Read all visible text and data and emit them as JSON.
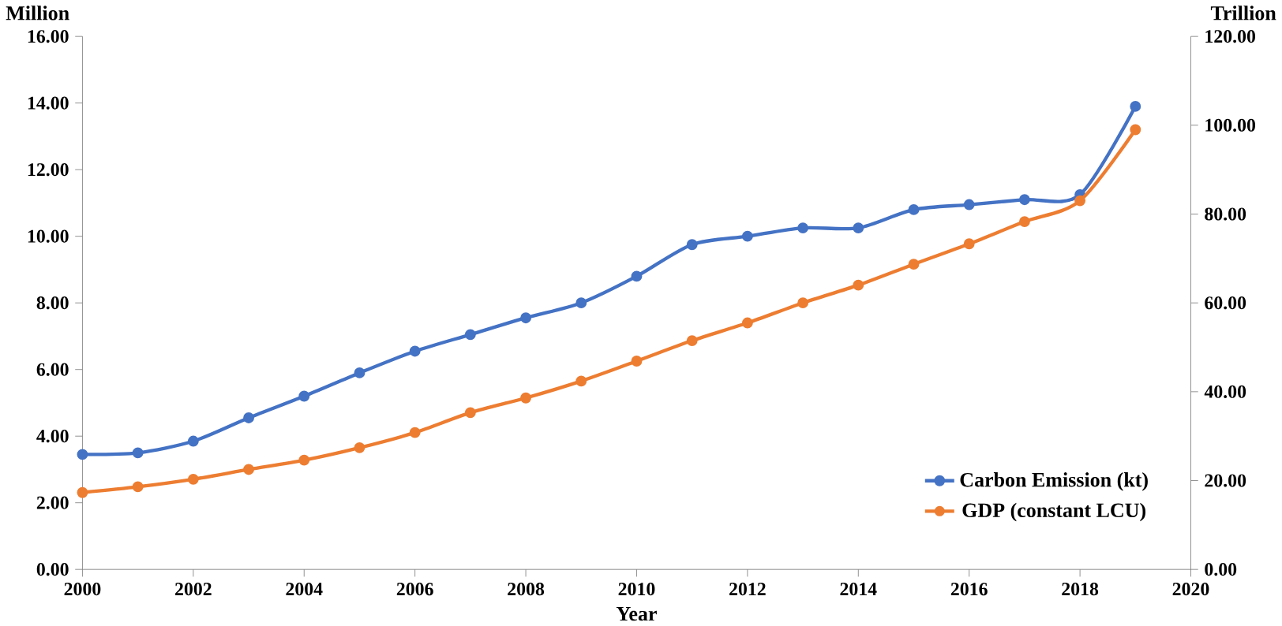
{
  "chart_data": {
    "type": "line",
    "xlabel": "Year",
    "ylabel": "Million",
    "y2label": "Trillion",
    "x": [
      2000,
      2001,
      2002,
      2003,
      2004,
      2005,
      2006,
      2007,
      2008,
      2009,
      2010,
      2011,
      2012,
      2013,
      2014,
      2015,
      2016,
      2017,
      2018,
      2019
    ],
    "series": [
      {
        "name": "Carbon Emission (kt)",
        "color": "#4472c4",
        "values": [
          3.45,
          3.5,
          3.85,
          4.55,
          5.2,
          5.9,
          6.55,
          7.05,
          7.55,
          8.0,
          8.8,
          9.75,
          10.0,
          10.25,
          10.25,
          10.8,
          10.95,
          11.1,
          11.25,
          13.9
        ]
      },
      {
        "name": "GDP (constant LCU)",
        "color": "#ed7d31",
        "axis": "y2",
        "values": [
          17.3,
          18.6,
          20.3,
          22.5,
          24.6,
          27.4,
          30.8,
          35.3,
          38.6,
          42.4,
          46.9,
          51.5,
          55.5,
          60,
          64,
          68.7,
          73.3,
          78.3,
          83,
          99
        ]
      }
    ],
    "xlim": [
      2000,
      2020
    ],
    "xticks": [
      2000,
      2002,
      2004,
      2006,
      2008,
      2010,
      2012,
      2014,
      2016,
      2018,
      2020
    ],
    "ylim": [
      0,
      16
    ],
    "yticks": [
      {
        "value": 0,
        "label": "0.00"
      },
      {
        "value": 2,
        "label": "2.00"
      },
      {
        "value": 4,
        "label": "4.00"
      },
      {
        "value": 6,
        "label": "6.00"
      },
      {
        "value": 8,
        "label": "8.00"
      },
      {
        "value": 10,
        "label": "10.00"
      },
      {
        "value": 12,
        "label": "12.00"
      },
      {
        "value": 14,
        "label": "14.00"
      },
      {
        "value": 16,
        "label": "16.00"
      }
    ],
    "y2lim": [
      0,
      120
    ],
    "y2ticks": [
      {
        "value": 0,
        "label": "0.00"
      },
      {
        "value": 20,
        "label": "20.00"
      },
      {
        "value": 40,
        "label": "40.00"
      },
      {
        "value": 60,
        "label": "60.00"
      },
      {
        "value": 80,
        "label": "80.00"
      },
      {
        "value": 100,
        "label": "100.00"
      },
      {
        "value": 120,
        "label": "120.00"
      }
    ],
    "marker": "circle",
    "grid": false,
    "legend": "bottom right"
  }
}
